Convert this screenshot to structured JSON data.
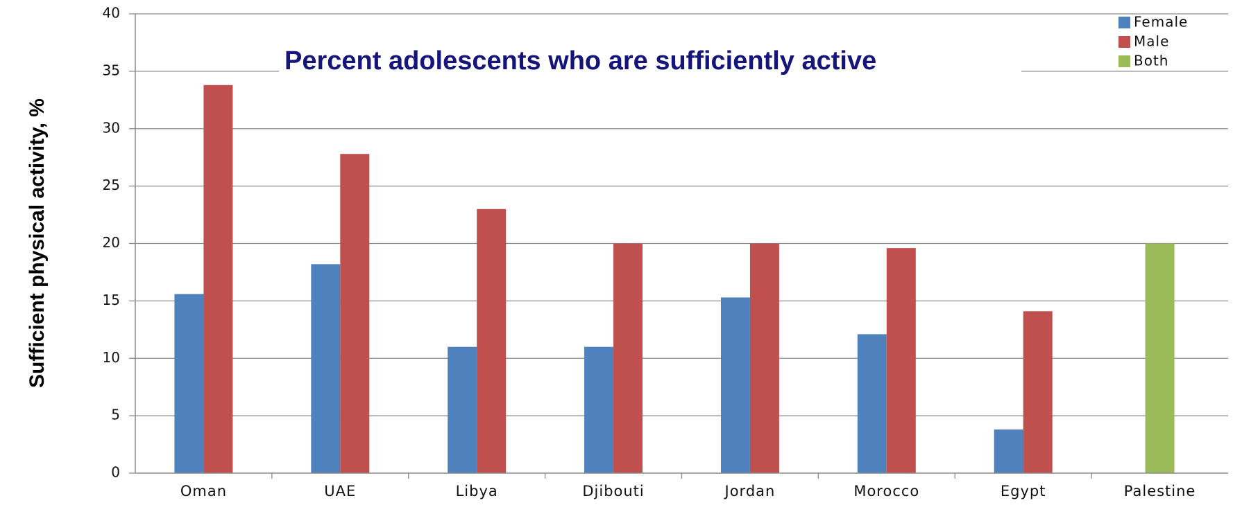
{
  "chart_data": {
    "type": "bar",
    "title": "Percent adolescents who are sufficiently active",
    "ylabel": "Sufficient physical activity, %",
    "xlabel": "",
    "ylim": [
      0,
      40
    ],
    "yticks": [
      0,
      5,
      10,
      15,
      20,
      25,
      30,
      35,
      40
    ],
    "grid": true,
    "legend_position": "top-right",
    "categories": [
      "Oman",
      "UAE",
      "Libya",
      "Djibouti",
      "Jordan",
      "Morocco",
      "Egypt",
      "Palestine"
    ],
    "series": [
      {
        "name": "Female",
        "color": "#4f81bd",
        "values": [
          15.6,
          18.2,
          11.0,
          11.0,
          15.3,
          12.1,
          3.8,
          null
        ]
      },
      {
        "name": "Male",
        "color": "#c0504d",
        "values": [
          33.8,
          27.8,
          23.0,
          20.0,
          20.0,
          19.6,
          14.1,
          null
        ]
      },
      {
        "name": "Both",
        "color": "#9bbb59",
        "values": [
          null,
          null,
          null,
          null,
          null,
          null,
          null,
          20.0
        ]
      }
    ]
  }
}
